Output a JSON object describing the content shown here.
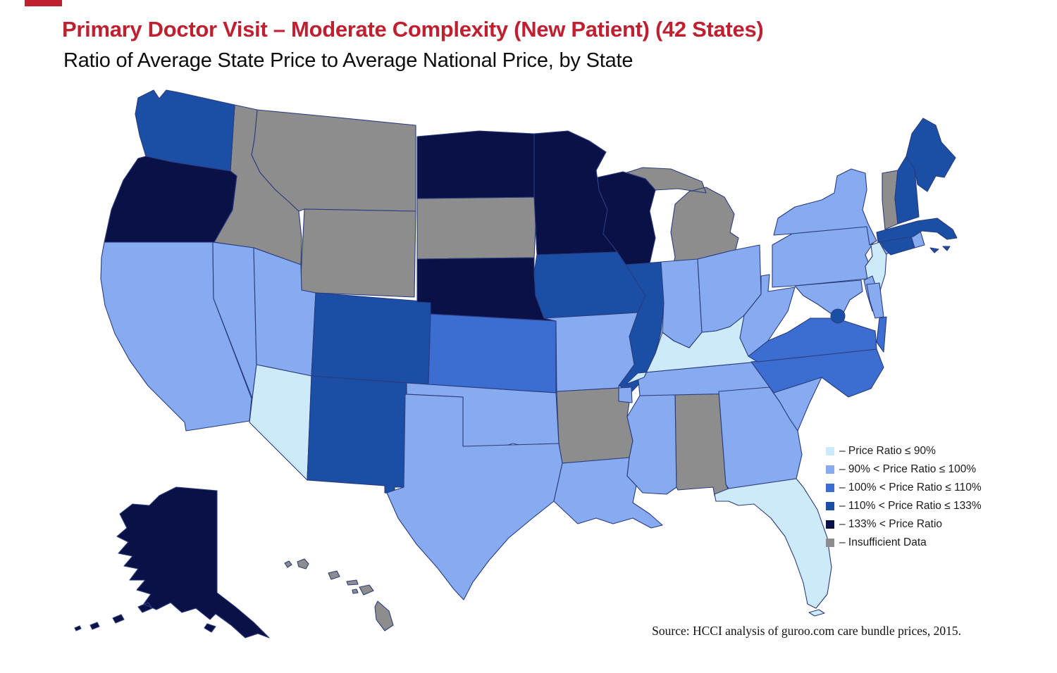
{
  "header": {
    "title": "Primary Doctor Visit – Moderate Complexity (New Patient) (42 States)",
    "subtitle": "Ratio of Average State Price to Average National Price, by State"
  },
  "footer": {
    "source": "Source: HCCI analysis of guroo.com care bundle prices, 2015."
  },
  "colors": {
    "title_red": "#bf1f2e",
    "border_stroke": "#2b3b7e",
    "background": "#ffffff"
  },
  "chart_data": {
    "type": "choropleth",
    "region": "United States",
    "title": "Primary Doctor Visit – Moderate Complexity (New Patient) (42 States)",
    "subtitle": "Ratio of Average State Price to Average National Price, by State",
    "legend_position": "right-middle",
    "palette": {
      "under90": "#cdeafb",
      "b90_100": "#86abf0",
      "b100_110": "#3c6dd1",
      "b110_133": "#1a4fa5",
      "over133": "#0a1146",
      "insufficient": "#8d8d8d"
    },
    "legend": [
      {
        "key": "under90",
        "label": "– Price Ratio ≤ 90%"
      },
      {
        "key": "b90_100",
        "label": "– 90% < Price Ratio ≤ 100%"
      },
      {
        "key": "b100_110",
        "label": "– 100% < Price Ratio ≤ 110%"
      },
      {
        "key": "b110_133",
        "label": "– 110% < Price Ratio ≤ 133%"
      },
      {
        "key": "over133",
        "label": "– 133% < Price Ratio"
      },
      {
        "key": "insufficient",
        "label": "– Insufficient Data"
      }
    ],
    "states": {
      "WA": "b110_133",
      "OR": "over133",
      "CA": "b90_100",
      "NV": "b90_100",
      "ID": "insufficient",
      "MT": "insufficient",
      "WY": "insufficient",
      "UT": "b90_100",
      "CO": "b110_133",
      "AZ": "under90",
      "NM": "b110_133",
      "ND": "over133",
      "SD": "insufficient",
      "NE": "over133",
      "KS": "b100_110",
      "OK": "b90_100",
      "TX": "b90_100",
      "MN": "over133",
      "IA": "b110_133",
      "MO": "b90_100",
      "AR": "insufficient",
      "LA": "b90_100",
      "WI": "over133",
      "IL": "b110_133",
      "MI": "insufficient",
      "IN": "b90_100",
      "OH": "b90_100",
      "KY": "under90",
      "TN": "b90_100",
      "MS": "b90_100",
      "AL": "insufficient",
      "GA": "b90_100",
      "FL": "under90",
      "SC": "b90_100",
      "NC": "b100_110",
      "VA": "b100_110",
      "WV": "b90_100",
      "PA": "b90_100",
      "NY": "b90_100",
      "NJ": "under90",
      "DE": "b90_100",
      "MD": "b90_100",
      "DC": "b110_133",
      "CT": "b110_133",
      "RI": "b90_100",
      "MA": "b110_133",
      "VT": "insufficient",
      "NH": "b110_133",
      "ME": "b110_133",
      "AK": "over133",
      "HI": "insufficient"
    }
  }
}
